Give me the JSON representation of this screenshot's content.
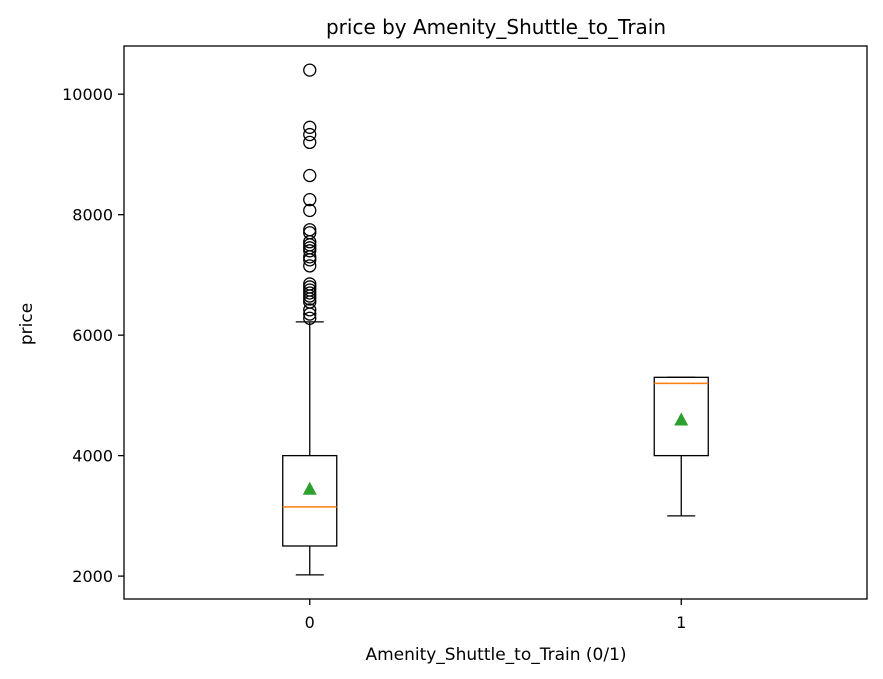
{
  "chart_data": {
    "type": "box",
    "title": "price by Amenity_Shuttle_to_Train",
    "xlabel": "Amenity_Shuttle_to_Train (0/1)",
    "ylabel": "price",
    "categories": [
      "0",
      "1"
    ],
    "ylim": [
      1620,
      10800
    ],
    "yticks": [
      2000,
      4000,
      6000,
      8000,
      10000
    ],
    "grid": false,
    "boxes": [
      {
        "category": "0",
        "whisker_low": 2020,
        "q1": 2500,
        "median": 3150,
        "q3": 4000,
        "whisker_high": 6220,
        "mean": 3450,
        "outliers": [
          6280,
          6350,
          6420,
          6550,
          6600,
          6650,
          6700,
          6750,
          6800,
          6850,
          7150,
          7250,
          7300,
          7400,
          7450,
          7500,
          7550,
          7700,
          7750,
          8070,
          8250,
          8650,
          9200,
          9330,
          9450,
          10400
        ]
      },
      {
        "category": "1",
        "whisker_low": 3000,
        "q1": 4000,
        "median": 5200,
        "q3": 5300,
        "whisker_high": 5300,
        "mean": 4600,
        "outliers": []
      }
    ],
    "colors": {
      "box": "#000000",
      "median": "#ff7f0e",
      "mean": "#2ca02c",
      "outlier": "#000000"
    }
  }
}
